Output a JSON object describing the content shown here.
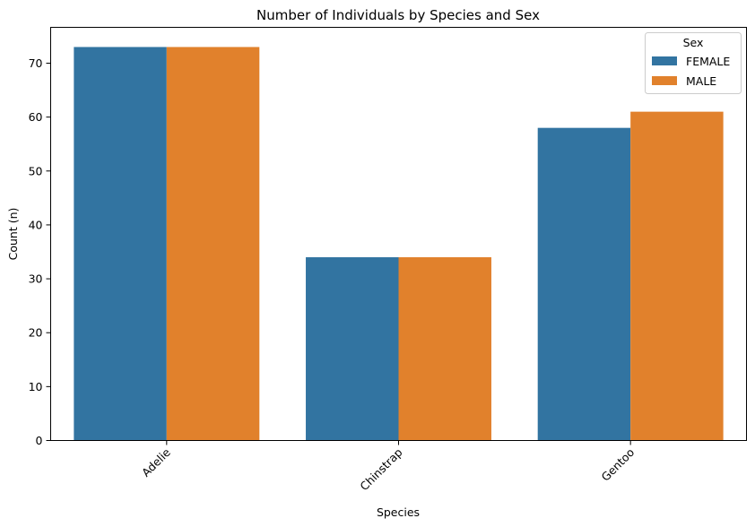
{
  "chart_data": {
    "type": "bar",
    "title": "Number of Individuals by Species and Sex",
    "xlabel": "Species",
    "ylabel": "Count (n)",
    "categories": [
      "Adelie",
      "Chinstrap",
      "Gentoo"
    ],
    "series": [
      {
        "name": "FEMALE",
        "values": [
          73,
          34,
          58
        ],
        "color": "#3274a1"
      },
      {
        "name": "MALE",
        "values": [
          73,
          34,
          61
        ],
        "color": "#e1812c"
      }
    ],
    "ylim": [
      0,
      76.65
    ],
    "yticks": [
      0,
      10,
      20,
      30,
      40,
      50,
      60,
      70
    ],
    "grid": false,
    "legend": {
      "title": "Sex",
      "placement": "top-right"
    },
    "xtick_rotation_deg": 45
  }
}
